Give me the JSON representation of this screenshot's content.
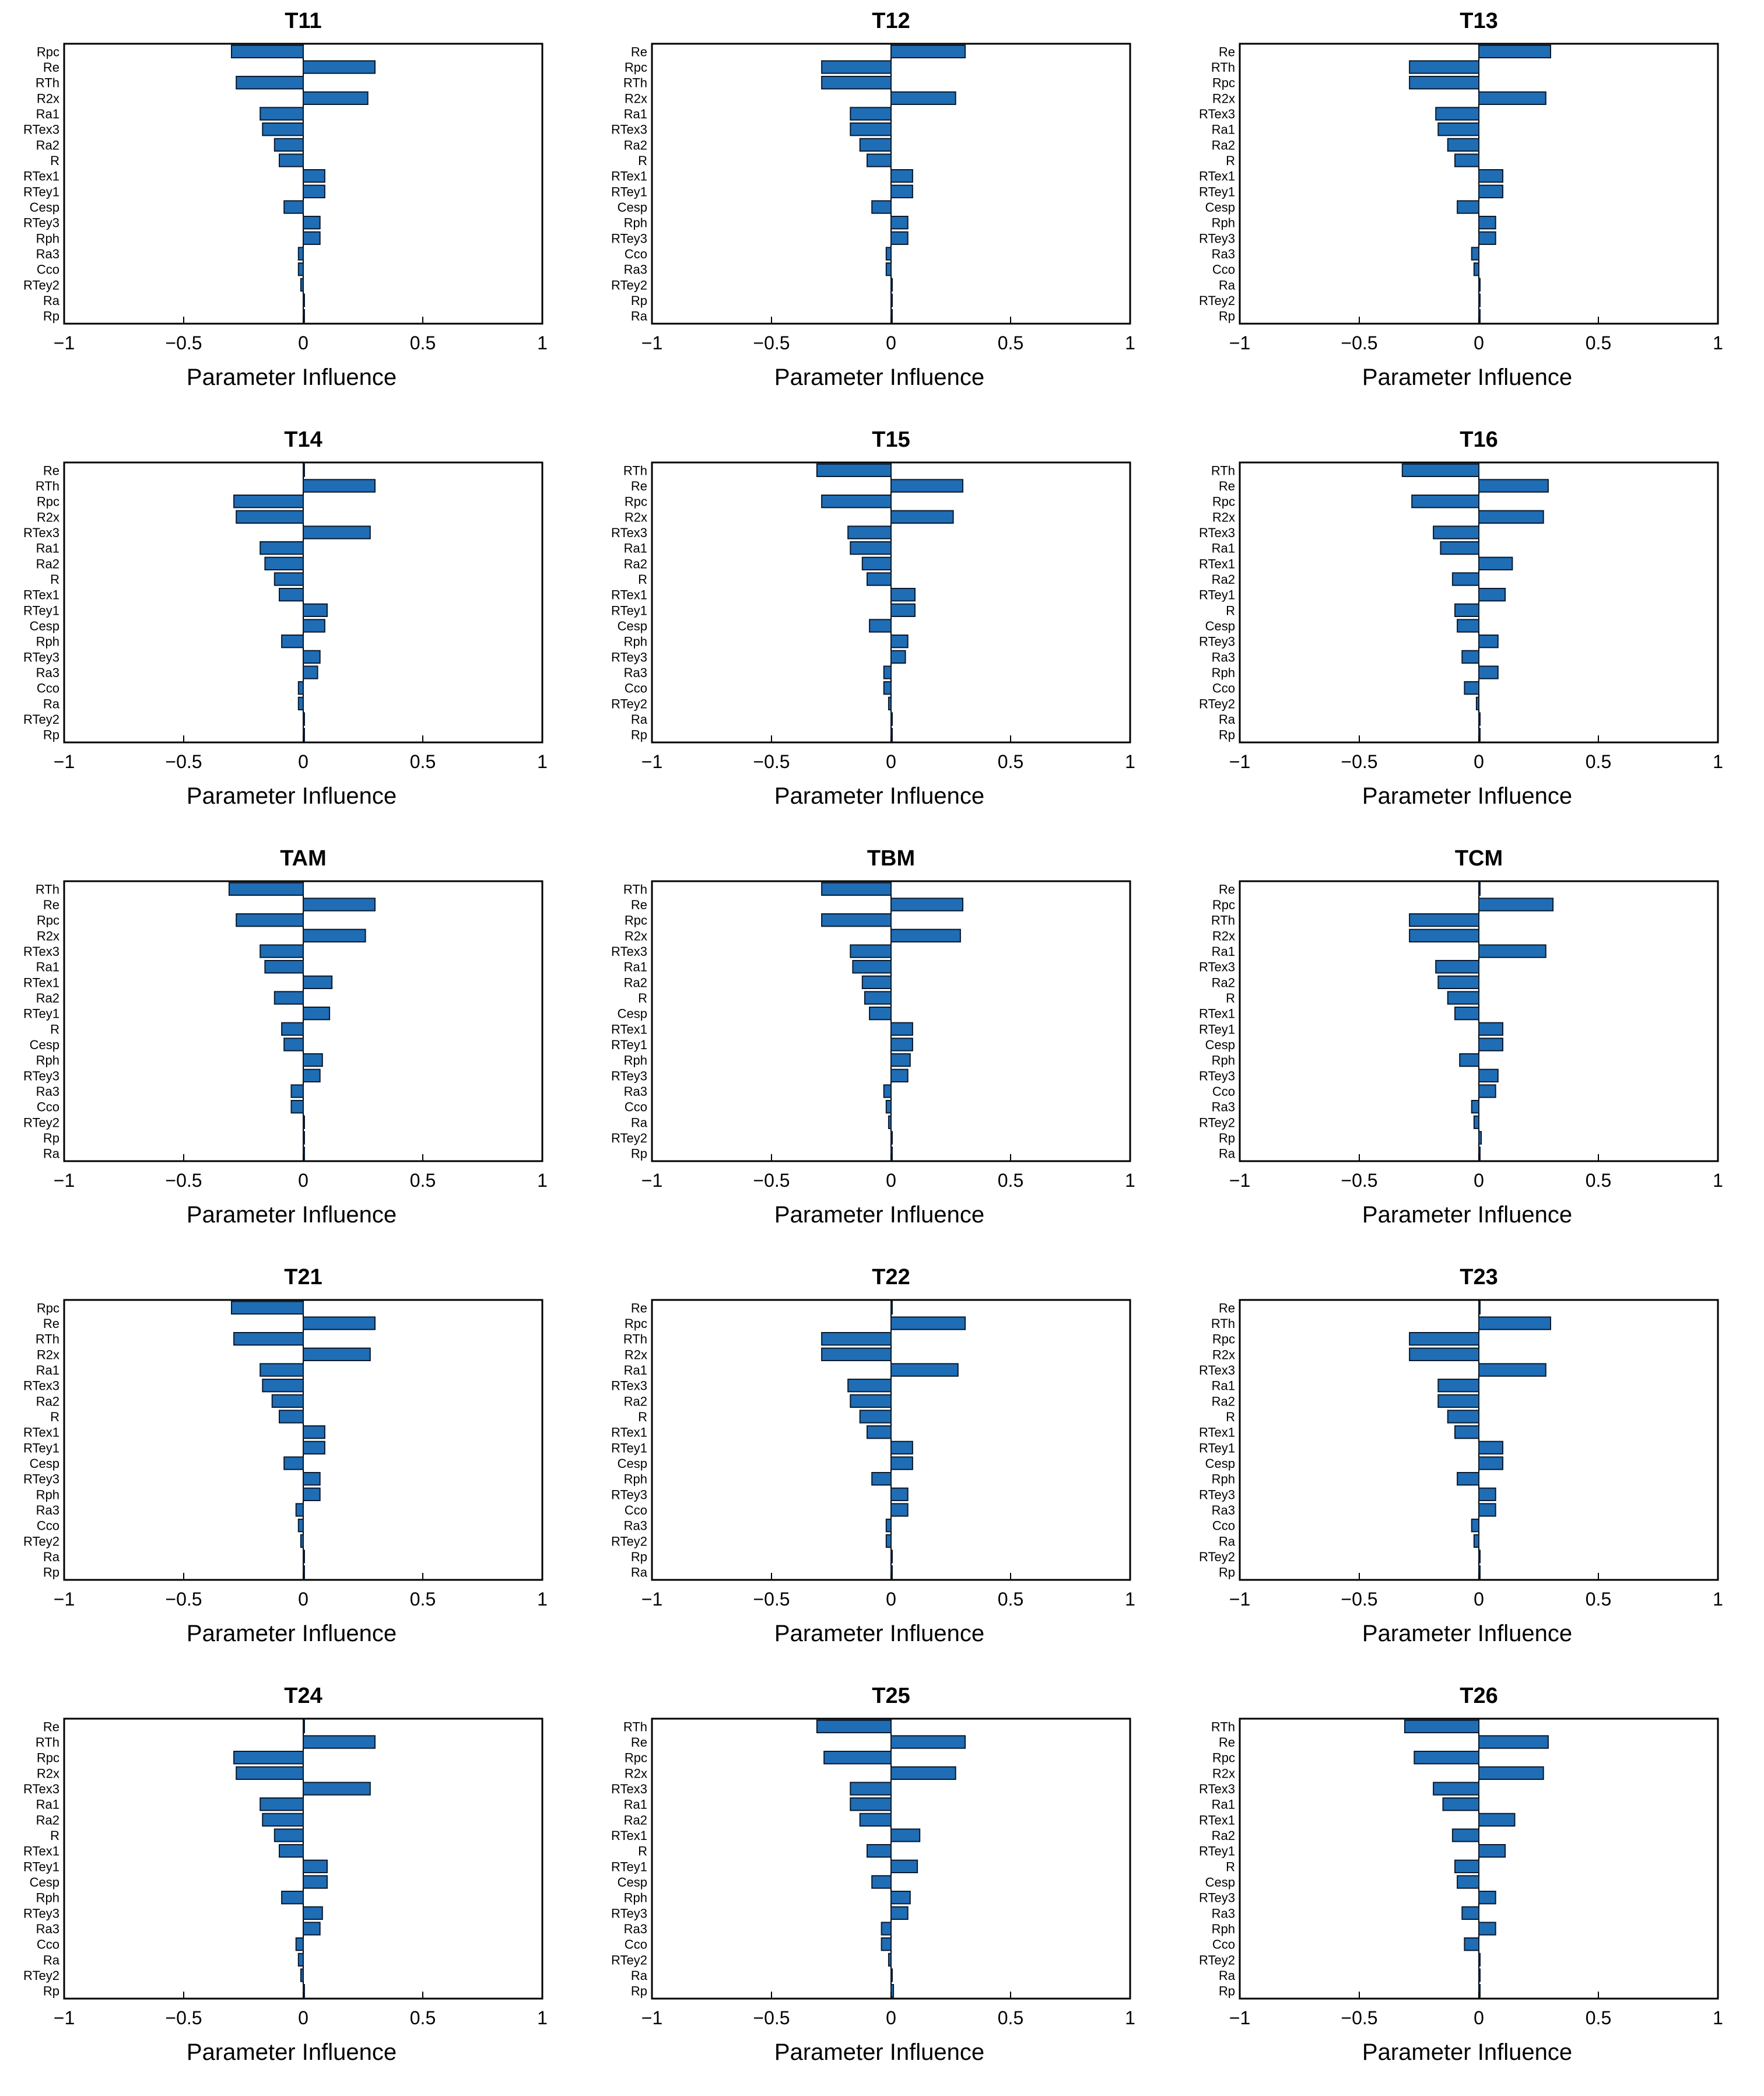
{
  "chart_data": [
    {
      "type": "bar",
      "orientation": "horizontal",
      "title": "T11",
      "xlabel": "Parameter Influence",
      "xlim": [
        -1,
        1
      ],
      "xticks": [
        "−1",
        "−0.5",
        "0",
        "0.5",
        "1"
      ],
      "categories": [
        "Rpc",
        "Re",
        "RTh",
        "R2x",
        "Ra1",
        "RTex3",
        "Ra2",
        "R",
        "RTex1",
        "RTey1",
        "Cesp",
        "RTey3",
        "Rph",
        "Ra3",
        "Cco",
        "RTey2",
        "Ra",
        "Rp"
      ],
      "values": [
        -0.3,
        0.3,
        -0.28,
        0.27,
        -0.18,
        -0.17,
        -0.12,
        -0.1,
        0.09,
        0.09,
        -0.08,
        0.07,
        0.07,
        -0.02,
        -0.02,
        -0.01,
        0.0,
        0.0
      ]
    },
    {
      "type": "bar",
      "orientation": "horizontal",
      "title": "T12",
      "xlabel": "Parameter Influence",
      "xlim": [
        -1,
        1
      ],
      "xticks": [
        "−1",
        "−0.5",
        "0",
        "0.5",
        "1"
      ],
      "categories": [
        "Re",
        "Rpc",
        "RTh",
        "R2x",
        "Ra1",
        "RTex3",
        "Ra2",
        "R",
        "RTex1",
        "RTey1",
        "Cesp",
        "Rph",
        "RTey3",
        "Cco",
        "Ra3",
        "RTey2",
        "Rp",
        "Ra"
      ],
      "values": [
        0.31,
        -0.29,
        -0.29,
        0.27,
        -0.17,
        -0.17,
        -0.13,
        -0.1,
        0.09,
        0.09,
        -0.08,
        0.07,
        0.07,
        -0.02,
        -0.02,
        0.0,
        0.0,
        0.0
      ]
    },
    {
      "type": "bar",
      "orientation": "horizontal",
      "title": "T13",
      "xlabel": "Parameter Influence",
      "xlim": [
        -1,
        1
      ],
      "xticks": [
        "−1",
        "−0.5",
        "0",
        "0.5",
        "1"
      ],
      "categories": [
        "Re",
        "RTh",
        "Rpc",
        "R2x",
        "RTex3",
        "Ra1",
        "Ra2",
        "R",
        "RTex1",
        "RTey1",
        "Cesp",
        "Rph",
        "RTey3",
        "Ra3",
        "Cco",
        "Ra",
        "RTey2",
        "Rp"
      ],
      "values": [
        0.3,
        -0.29,
        -0.29,
        0.28,
        -0.18,
        -0.17,
        -0.13,
        -0.1,
        0.1,
        0.1,
        -0.09,
        0.07,
        0.07,
        -0.03,
        -0.02,
        0.0,
        0.0,
        0.0
      ]
    },
    {
      "type": "bar",
      "orientation": "horizontal",
      "title": "T14",
      "xlabel": "Parameter Influence",
      "xlim": [
        -1,
        1
      ],
      "xticks": [
        "−1",
        "−0.5",
        "0",
        "0.5",
        "1"
      ],
      "categories": [
        "Re",
        "RTh",
        "Rpc",
        "R2x",
        "RTex3",
        "Ra1",
        "Ra2",
        "R",
        "RTex1",
        "RTey1",
        "Cesp",
        "Rph",
        "RTey3",
        "Ra3",
        "Cco",
        "Ra",
        "RTey2",
        "Rp"
      ],
      "values": [
        0.0,
        0.3,
        -0.29,
        -0.28,
        0.28,
        -0.18,
        -0.16,
        -0.12,
        -0.1,
        0.1,
        0.09,
        -0.09,
        0.07,
        0.06,
        -0.02,
        -0.02,
        0.0,
        0.0
      ]
    },
    {
      "type": "bar",
      "orientation": "horizontal",
      "title": "T15",
      "xlabel": "Parameter Influence",
      "xlim": [
        -1,
        1
      ],
      "xticks": [
        "−1",
        "−0.5",
        "0",
        "0.5",
        "1"
      ],
      "categories": [
        "RTh",
        "Re",
        "Rpc",
        "R2x",
        "RTex3",
        "Ra1",
        "Ra2",
        "R",
        "RTex1",
        "RTey1",
        "Cesp",
        "Rph",
        "RTey3",
        "Ra3",
        "Cco",
        "RTey2",
        "Ra",
        "Rp"
      ],
      "values": [
        -0.31,
        0.3,
        -0.29,
        0.26,
        -0.18,
        -0.17,
        -0.12,
        -0.1,
        0.1,
        0.1,
        -0.09,
        0.07,
        0.06,
        -0.03,
        -0.03,
        -0.01,
        0.0,
        0.0
      ]
    },
    {
      "type": "bar",
      "orientation": "horizontal",
      "title": "T16",
      "xlabel": "Parameter Influence",
      "xlim": [
        -1,
        1
      ],
      "xticks": [
        "−1",
        "−0.5",
        "0",
        "0.5",
        "1"
      ],
      "categories": [
        "RTh",
        "Re",
        "Rpc",
        "R2x",
        "RTex3",
        "Ra1",
        "RTex1",
        "Ra2",
        "RTey1",
        "R",
        "Cesp",
        "RTey3",
        "Ra3",
        "Rph",
        "Cco",
        "RTey2",
        "Ra",
        "Rp"
      ],
      "values": [
        -0.32,
        0.29,
        -0.28,
        0.27,
        -0.19,
        -0.16,
        0.14,
        -0.11,
        0.11,
        -0.1,
        -0.09,
        0.08,
        -0.07,
        0.08,
        -0.06,
        -0.01,
        0.0,
        0.0
      ]
    },
    {
      "type": "bar",
      "orientation": "horizontal",
      "title": "TAM",
      "xlabel": "Parameter Influence",
      "xlim": [
        -1,
        1
      ],
      "xticks": [
        "−1",
        "−0.5",
        "0",
        "0.5",
        "1"
      ],
      "categories": [
        "RTh",
        "Re",
        "Rpc",
        "R2x",
        "RTex3",
        "Ra1",
        "RTex1",
        "Ra2",
        "RTey1",
        "R",
        "Cesp",
        "Rph",
        "RTey3",
        "Ra3",
        "Cco",
        "RTey2",
        "Rp",
        "Ra"
      ],
      "values": [
        -0.31,
        0.3,
        -0.28,
        0.26,
        -0.18,
        -0.16,
        0.12,
        -0.12,
        0.11,
        -0.09,
        -0.08,
        0.08,
        0.07,
        -0.05,
        -0.05,
        0.0,
        0.0,
        0.0
      ]
    },
    {
      "type": "bar",
      "orientation": "horizontal",
      "title": "TBM",
      "xlabel": "Parameter Influence",
      "xlim": [
        -1,
        1
      ],
      "xticks": [
        "−1",
        "−0.5",
        "0",
        "0.5",
        "1"
      ],
      "categories": [
        "RTh",
        "Re",
        "Rpc",
        "R2x",
        "RTex3",
        "Ra1",
        "Ra2",
        "R",
        "Cesp",
        "RTex1",
        "RTey1",
        "Rph",
        "RTey3",
        "Ra3",
        "Cco",
        "Ra",
        "RTey2",
        "Rp"
      ],
      "values": [
        -0.29,
        0.3,
        -0.29,
        0.29,
        -0.17,
        -0.16,
        -0.12,
        -0.11,
        -0.09,
        0.09,
        0.09,
        0.08,
        0.07,
        -0.03,
        -0.02,
        -0.01,
        0.0,
        0.0
      ]
    },
    {
      "type": "bar",
      "orientation": "horizontal",
      "title": "TCM",
      "xlabel": "Parameter Influence",
      "xlim": [
        -1,
        1
      ],
      "xticks": [
        "−1",
        "−0.5",
        "0",
        "0.5",
        "1"
      ],
      "categories": [
        "Re",
        "Rpc",
        "RTh",
        "R2x",
        "Ra1",
        "RTex3",
        "Ra2",
        "R",
        "RTex1",
        "RTey1",
        "Cesp",
        "Rph",
        "RTey3",
        "Cco",
        "Ra3",
        "RTey2",
        "Rp",
        "Ra"
      ],
      "values": [
        0.0,
        0.31,
        -0.29,
        -0.29,
        0.28,
        -0.18,
        -0.17,
        -0.13,
        -0.1,
        0.1,
        0.1,
        -0.08,
        0.08,
        0.07,
        -0.03,
        -0.02,
        0.01,
        0.0
      ]
    },
    {
      "type": "bar",
      "orientation": "horizontal",
      "title": "T21",
      "xlabel": "Parameter Influence",
      "xlim": [
        -1,
        1
      ],
      "xticks": [
        "−1",
        "−0.5",
        "0",
        "0.5",
        "1"
      ],
      "categories": [
        "Rpc",
        "Re",
        "RTh",
        "R2x",
        "Ra1",
        "RTex3",
        "Ra2",
        "R",
        "RTex1",
        "RTey1",
        "Cesp",
        "RTey3",
        "Rph",
        "Ra3",
        "Cco",
        "RTey2",
        "Ra",
        "Rp"
      ],
      "values": [
        -0.3,
        0.3,
        -0.29,
        0.28,
        -0.18,
        -0.17,
        -0.13,
        -0.1,
        0.09,
        0.09,
        -0.08,
        0.07,
        0.07,
        -0.03,
        -0.02,
        -0.01,
        0.0,
        0.0
      ]
    },
    {
      "type": "bar",
      "orientation": "horizontal",
      "title": "T22",
      "xlabel": "Parameter Influence",
      "xlim": [
        -1,
        1
      ],
      "xticks": [
        "−1",
        "−0.5",
        "0",
        "0.5",
        "1"
      ],
      "categories": [
        "Re",
        "Rpc",
        "RTh",
        "R2x",
        "Ra1",
        "RTex3",
        "Ra2",
        "R",
        "RTex1",
        "RTey1",
        "Cesp",
        "Rph",
        "RTey3",
        "Cco",
        "Ra3",
        "RTey2",
        "Rp",
        "Ra"
      ],
      "values": [
        0.0,
        0.31,
        -0.29,
        -0.29,
        0.28,
        -0.18,
        -0.17,
        -0.13,
        -0.1,
        0.09,
        0.09,
        -0.08,
        0.07,
        0.07,
        -0.02,
        -0.02,
        0.0,
        0.0
      ]
    },
    {
      "type": "bar",
      "orientation": "horizontal",
      "title": "T23",
      "xlabel": "Parameter Influence",
      "xlim": [
        -1,
        1
      ],
      "xticks": [
        "−1",
        "−0.5",
        "0",
        "0.5",
        "1"
      ],
      "categories": [
        "Re",
        "RTh",
        "Rpc",
        "R2x",
        "RTex3",
        "Ra1",
        "Ra2",
        "R",
        "RTex1",
        "RTey1",
        "Cesp",
        "Rph",
        "RTey3",
        "Ra3",
        "Cco",
        "Ra",
        "RTey2",
        "Rp"
      ],
      "values": [
        0.0,
        0.3,
        -0.29,
        -0.29,
        0.28,
        -0.17,
        -0.17,
        -0.13,
        -0.1,
        0.1,
        0.1,
        -0.09,
        0.07,
        0.07,
        -0.03,
        -0.02,
        0.0,
        0.0
      ]
    },
    {
      "type": "bar",
      "orientation": "horizontal",
      "title": "T24",
      "xlabel": "Parameter Influence",
      "xlim": [
        -1,
        1
      ],
      "xticks": [
        "−1",
        "−0.5",
        "0",
        "0.5",
        "1"
      ],
      "categories": [
        "Re",
        "RTh",
        "Rpc",
        "R2x",
        "RTex3",
        "Ra1",
        "Ra2",
        "R",
        "RTex1",
        "RTey1",
        "Cesp",
        "Rph",
        "RTey3",
        "Ra3",
        "Cco",
        "Ra",
        "RTey2",
        "Rp"
      ],
      "values": [
        0.0,
        0.3,
        -0.29,
        -0.28,
        0.28,
        -0.18,
        -0.17,
        -0.12,
        -0.1,
        0.1,
        0.1,
        -0.09,
        0.08,
        0.07,
        -0.03,
        -0.02,
        -0.01,
        0.0
      ]
    },
    {
      "type": "bar",
      "orientation": "horizontal",
      "title": "T25",
      "xlabel": "Parameter Influence",
      "xlim": [
        -1,
        1
      ],
      "xticks": [
        "−1",
        "−0.5",
        "0",
        "0.5",
        "1"
      ],
      "categories": [
        "RTh",
        "Re",
        "Rpc",
        "R2x",
        "RTex3",
        "Ra1",
        "Ra2",
        "RTex1",
        "R",
        "RTey1",
        "Cesp",
        "Rph",
        "RTey3",
        "Ra3",
        "Cco",
        "RTey2",
        "Ra",
        "Rp"
      ],
      "values": [
        -0.31,
        0.31,
        -0.28,
        0.27,
        -0.17,
        -0.17,
        -0.13,
        0.12,
        -0.1,
        0.11,
        -0.08,
        0.08,
        0.07,
        -0.04,
        -0.04,
        -0.01,
        0.0,
        0.01
      ]
    },
    {
      "type": "bar",
      "orientation": "horizontal",
      "title": "T26",
      "xlabel": "Parameter Influence",
      "xlim": [
        -1,
        1
      ],
      "xticks": [
        "−1",
        "−0.5",
        "0",
        "0.5",
        "1"
      ],
      "categories": [
        "RTh",
        "Re",
        "Rpc",
        "R2x",
        "RTex3",
        "Ra1",
        "RTex1",
        "Ra2",
        "RTey1",
        "R",
        "Cesp",
        "RTey3",
        "Ra3",
        "Rph",
        "Cco",
        "RTey2",
        "Ra",
        "Rp"
      ],
      "values": [
        -0.31,
        0.29,
        -0.27,
        0.27,
        -0.19,
        -0.15,
        0.15,
        -0.11,
        0.11,
        -0.1,
        -0.09,
        0.07,
        -0.07,
        0.07,
        -0.06,
        0.0,
        0.0,
        0.0
      ]
    }
  ],
  "colors": {
    "bar_fill": "#1f6db5",
    "bar_edge": "#0a1a2e",
    "axis": "#000000"
  }
}
